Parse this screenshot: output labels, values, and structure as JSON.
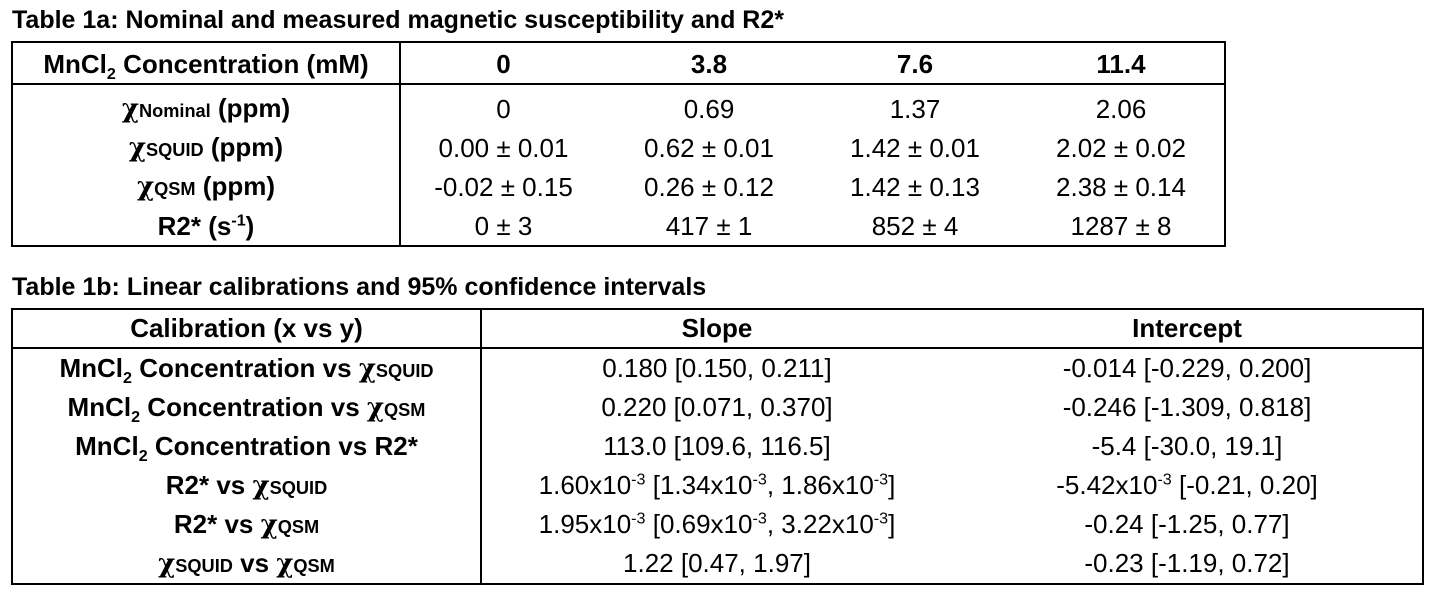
{
  "table1a": {
    "title": "Table 1a: Nominal and measured magnetic susceptibility and R2*",
    "header": {
      "label_main": "MnCl",
      "label_sub": "2",
      "label_tail": " Concentration (mM)",
      "columns": [
        "0",
        "3.8",
        "7.6",
        "11.4"
      ]
    },
    "rows": [
      {
        "chi": "χ",
        "sub": "Nominal",
        "unit": " (ppm)",
        "values": [
          "0",
          "0.69",
          "1.37",
          "2.06"
        ]
      },
      {
        "chi": "χ",
        "sub": "SQUID",
        "unit": " (ppm)",
        "values": [
          "0.00 ± 0.01",
          "0.62 ± 0.01",
          "1.42 ± 0.01",
          "2.02 ± 0.02"
        ]
      },
      {
        "chi": "χ",
        "sub": "QSM",
        "unit": " (ppm)",
        "values": [
          "-0.02 ± 0.15",
          "0.26 ± 0.12",
          "1.42 ± 0.13",
          "2.38 ± 0.14"
        ]
      }
    ],
    "r2_row": {
      "label_main": "R2* (s",
      "label_sup": "-1",
      "label_tail": ")",
      "values": [
        "0 ± 3",
        "417 ± 1",
        "852 ± 4",
        "1287 ± 8"
      ]
    }
  },
  "table1b": {
    "title": "Table 1b: Linear calibrations and 95% confidence intervals",
    "headers": [
      "Calibration (x vs y)",
      "Slope",
      "Intercept"
    ],
    "labels": {
      "mncl": "MnCl",
      "two": "2",
      "conc_vs": " Concentration vs ",
      "chi": "χ",
      "squid": "SQUID",
      "qsm": "QSM",
      "r2": "R2*",
      "r2_vs": "R2* vs ",
      "vs": " vs "
    },
    "rows": [
      {
        "slope": "0.180 [0.150, 0.211]",
        "intercept": "-0.014 [-0.229, 0.200]"
      },
      {
        "slope": "0.220 [0.071, 0.370]",
        "intercept": "-0.246 [-1.309, 0.818]"
      },
      {
        "slope": "113.0 [109.6, 116.5]",
        "intercept": "-5.4 [-30.0, 19.1]"
      },
      {
        "slope_parts": [
          "1.60x10",
          "-3",
          " [1.34x10",
          "-3",
          ", 1.86x10",
          "-3",
          "]"
        ],
        "intercept_parts": [
          "-5.42x10",
          "-3",
          " [-0.21, 0.20]"
        ]
      },
      {
        "slope_parts": [
          "1.95x10",
          "-3",
          " [0.69x10",
          "-3",
          ", 3.22x10",
          "-3",
          "]"
        ],
        "intercept": "-0.24 [-1.25, 0.77]"
      },
      {
        "slope": "1.22 [0.47, 1.97]",
        "intercept": "-0.23 [-1.19, 0.72]"
      }
    ]
  }
}
